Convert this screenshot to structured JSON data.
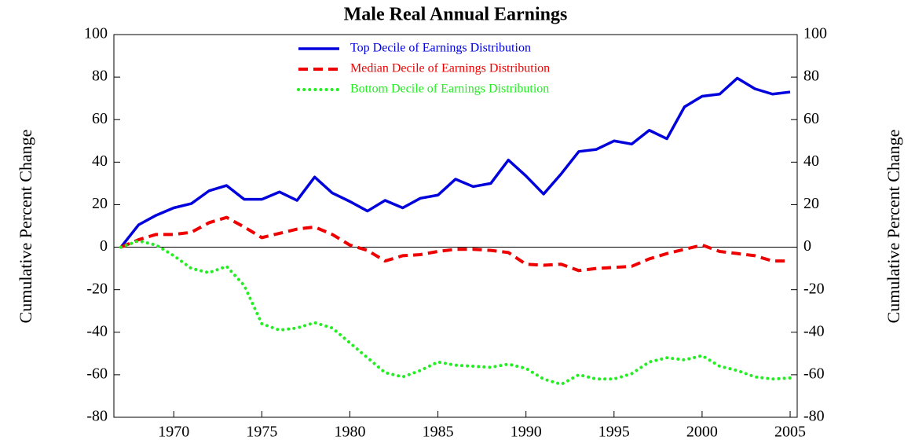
{
  "chart_data": {
    "type": "line",
    "title": "Male Real Annual Earnings",
    "y_label": "Cumulative Percent Change",
    "y2_label": "Cumulative Percent Change",
    "x": [
      1967,
      1968,
      1969,
      1970,
      1971,
      1972,
      1973,
      1974,
      1975,
      1976,
      1977,
      1978,
      1979,
      1980,
      1981,
      1982,
      1983,
      1984,
      1985,
      1986,
      1987,
      1988,
      1989,
      1990,
      1991,
      1992,
      1993,
      1994,
      1995,
      1996,
      1997,
      1998,
      1999,
      2000,
      2001,
      2002,
      2003,
      2004,
      2005
    ],
    "series": [
      {
        "name": "Top Decile of Earnings Distribution",
        "color": "#0000dd",
        "style": "solid",
        "values": [
          0,
          10.5,
          15,
          18.5,
          20.5,
          26.5,
          29,
          22.5,
          22.5,
          26,
          22,
          33,
          25.5,
          21.5,
          17,
          22,
          18.5,
          23,
          24.5,
          32,
          28.5,
          30,
          41,
          33.5,
          25,
          34.5,
          45,
          46,
          50,
          48.5,
          55,
          51,
          66,
          71,
          72,
          79.5,
          74.5,
          72,
          73
        ]
      },
      {
        "name": "Median Decile of Earnings Distribution",
        "color": "#ee0000",
        "style": "dashed",
        "values": [
          0,
          3.5,
          6,
          6,
          7,
          11.5,
          14,
          9.5,
          4.5,
          6.5,
          8.5,
          9.5,
          6,
          1,
          -1.5,
          -6.5,
          -4,
          -3.5,
          -2,
          -1,
          -1,
          -1.5,
          -2.5,
          -8,
          -8.5,
          -8,
          -11,
          -10,
          -9.5,
          -9,
          -5.5,
          -3,
          -1,
          1,
          -2,
          -3,
          -4,
          -6.5,
          -6.5
        ]
      },
      {
        "name": "Bottom Decile of Earnings Distribution",
        "color": "#22ee22",
        "style": "dotted",
        "values": [
          0,
          3,
          1,
          -4,
          -10,
          -12,
          -9,
          -18,
          -36,
          -39,
          -38,
          -35.5,
          -38,
          -45,
          -52,
          -59,
          -61,
          -58,
          -54,
          -55.5,
          -56,
          -56.5,
          -55,
          -57,
          -62,
          -64.5,
          -60,
          -62,
          -62,
          -59.5,
          -54,
          -52,
          -53,
          -51,
          -56,
          -58,
          -61,
          -62,
          -61.5
        ]
      }
    ],
    "xlim": [
      1966.6,
      2005.4
    ],
    "xticks": [
      1970,
      1975,
      1980,
      1985,
      1990,
      1995,
      2000,
      2005
    ],
    "ylim": [
      -80,
      100
    ],
    "yticks": [
      -80,
      -60,
      -40,
      -20,
      0,
      20,
      40,
      60,
      80,
      100
    ],
    "y2lim": [
      -80,
      100
    ],
    "y2ticks": [
      -80,
      -60,
      -40,
      -20,
      0,
      20,
      40,
      60,
      80,
      100
    ],
    "zero_line": true,
    "legend": "top"
  }
}
